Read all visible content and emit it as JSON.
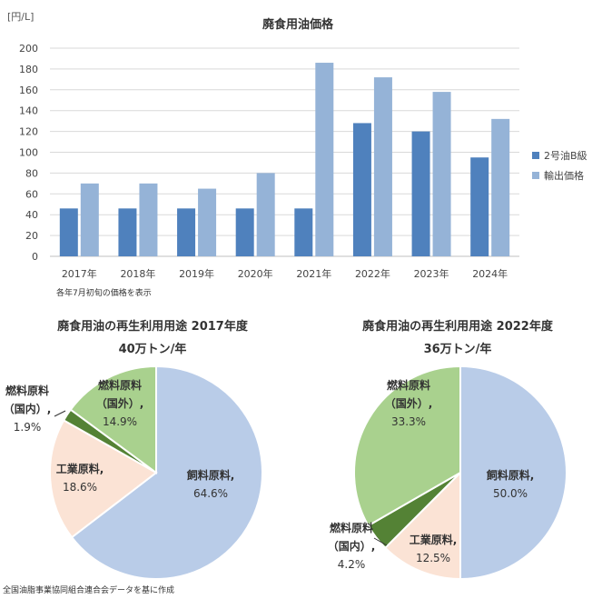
{
  "chart_data": [
    {
      "type": "bar",
      "title": "廃食用油価格",
      "ylabel": "[円/L]",
      "note": "各年7月初旬の価格を表示",
      "categories": [
        "2017年",
        "2018年",
        "2019年",
        "2020年",
        "2021年",
        "2022年",
        "2023年",
        "2024年"
      ],
      "ylim": [
        0,
        200
      ],
      "yticks": [
        0,
        20,
        40,
        60,
        80,
        100,
        120,
        140,
        160,
        180,
        200
      ],
      "grid": true,
      "legend": "right",
      "series": [
        {
          "name": "2号油B級",
          "color": "#4f81bd",
          "values": [
            46,
            46,
            46,
            46,
            46,
            128,
            120,
            95
          ]
        },
        {
          "name": "輸出価格",
          "color": "#95b3d7",
          "values": [
            70,
            70,
            65,
            80,
            186,
            172,
            158,
            132
          ]
        }
      ]
    },
    {
      "type": "pie",
      "title": "廃食用油の再生利用用途 2017年度",
      "subtitle": "40万トン/年",
      "slices": [
        {
          "label": "飼料原料,",
          "value": 64.6,
          "text": "64.6%",
          "color": "#b9cce8"
        },
        {
          "label": "工業原料,",
          "value": 18.6,
          "text": "18.6%",
          "color": "#fbe3d5"
        },
        {
          "label": "燃料原料",
          "label2": "（国内）,",
          "value": 1.9,
          "text": "1.9%",
          "color": "#548235"
        },
        {
          "label": "燃料原料",
          "label2": "（国外）,",
          "value": 14.9,
          "text": "14.9%",
          "color": "#a9d18e"
        }
      ]
    },
    {
      "type": "pie",
      "title": "廃食用油の再生利用用途 2022年度",
      "subtitle": "36万トン/年",
      "slices": [
        {
          "label": "飼料原料,",
          "value": 50.0,
          "text": "50.0%",
          "color": "#b9cce8"
        },
        {
          "label": "工業原料,",
          "value": 12.5,
          "text": "12.5%",
          "color": "#fbe3d5"
        },
        {
          "label": "燃料原料",
          "label2": "（国内）,",
          "value": 4.2,
          "text": "4.2%",
          "color": "#548235"
        },
        {
          "label": "燃料原料",
          "label2": "（国外）,",
          "value": 33.3,
          "text": "33.3%",
          "color": "#a9d18e"
        }
      ]
    }
  ],
  "source": "全国油脂事業協同組合連合会データを基に作成"
}
